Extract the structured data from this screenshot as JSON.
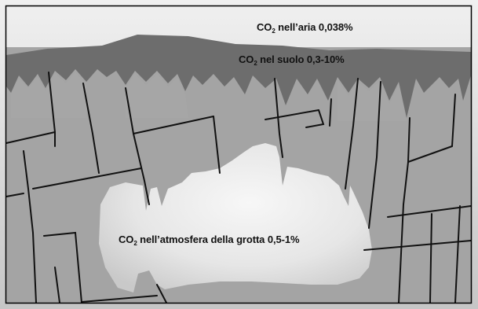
{
  "labels": {
    "air": {
      "gas": "CO",
      "sub": "2",
      "text": " nell’aria 0,038%"
    },
    "soil": {
      "gas": "CO",
      "sub": "2",
      "text": " nel suolo 0,3-10%"
    },
    "cave": {
      "gas": "CO",
      "sub": "2",
      "text": " nell’atmosfera della  grotta 0,5-1%"
    }
  },
  "colors": {
    "air": "#d7d7d7",
    "soil": "#6e6e6e",
    "rock": "#a3a3a3",
    "cave": "#e8e8e8",
    "fracture": "#111111",
    "frame": "#000000"
  }
}
